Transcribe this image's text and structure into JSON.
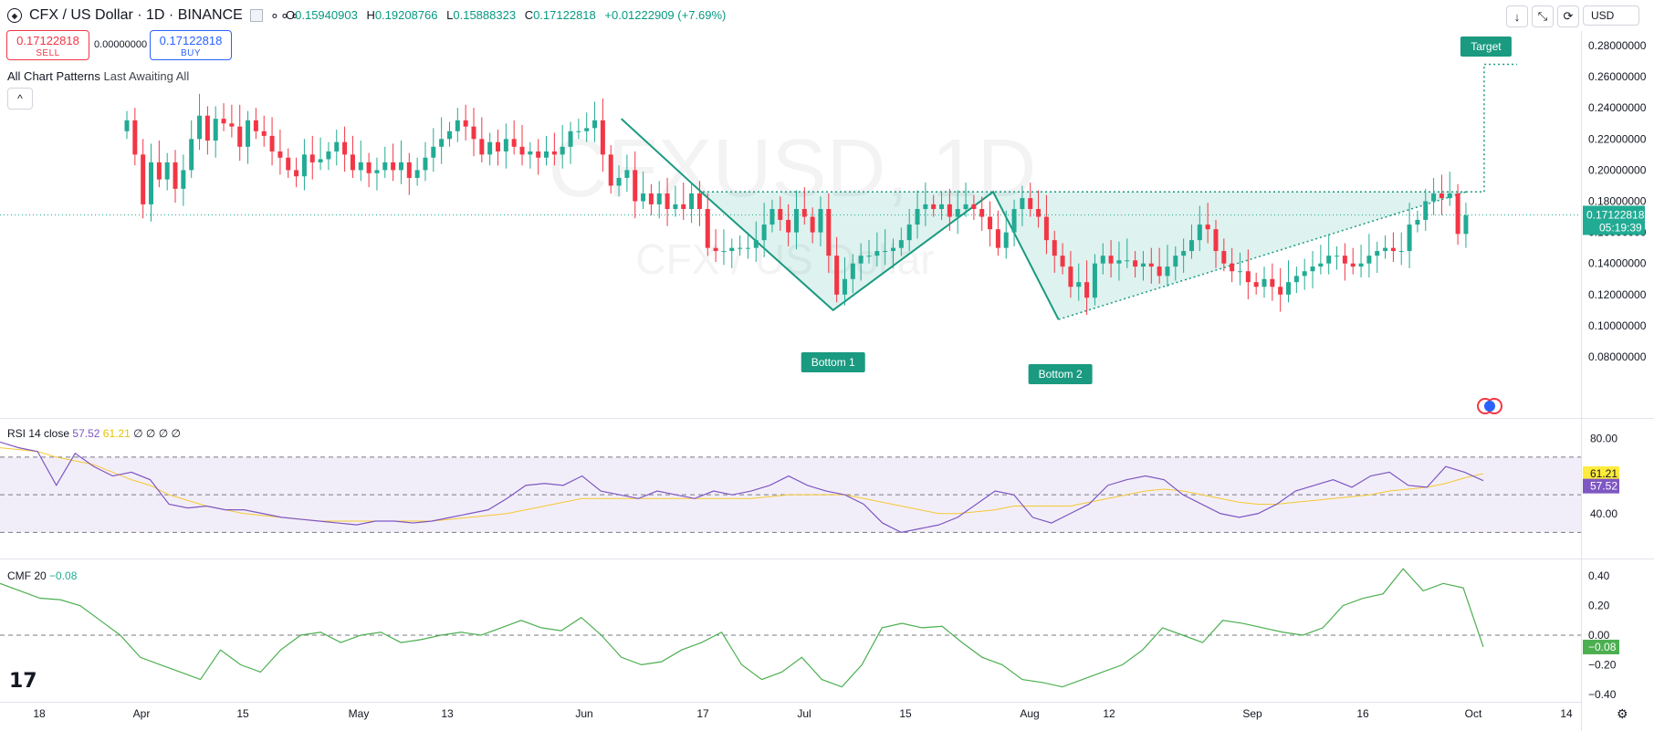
{
  "header": {
    "symbol_title": "CFX / US Dollar · 1D · BINANCE",
    "ohlc": {
      "open_label": "O",
      "open": "0.15940903",
      "high_label": "H",
      "high": "0.19208766",
      "low_label": "L",
      "low": "0.15888323",
      "close_label": "C",
      "close": "0.17122818",
      "change": "+0.01222909 (+7.69%)"
    },
    "currency": "USD"
  },
  "trade": {
    "sell_price": "0.17122818",
    "sell_label": "SELL",
    "buy_price": "0.17122818",
    "buy_label": "BUY",
    "spread": "0.00000000"
  },
  "indicator_bar": {
    "name": "All Chart Patterns",
    "params": "Last Awaiting All"
  },
  "watermark": {
    "symbol": "CFXUSD, 1D",
    "name": "CFX / US Dollar"
  },
  "annotations": {
    "bottom1": "Bottom 1",
    "bottom2": "Bottom 2",
    "target": "Target"
  },
  "price_tag": {
    "price": "0.17122818",
    "countdown": "05:19:39"
  },
  "rsi": {
    "legend_name": "RSI 14 close",
    "value": "57.52",
    "ma": "61.21",
    "empties": "∅ ∅ ∅ ∅",
    "ticks": [
      "80.00",
      "40.00"
    ]
  },
  "cmf": {
    "legend_name": "CMF 20",
    "value": "−0.08",
    "ticks": [
      "0.40",
      "0.20",
      "0.00",
      "−0.20",
      "−0.40"
    ]
  },
  "colors": {
    "up": "#22ab94",
    "down": "#f23645",
    "pattern": "#1a9a80",
    "rsi": "#7e57c2",
    "rsi_ma": "#f5c832",
    "cmf": "#4caf50"
  },
  "chart_data": {
    "type": "candlestick",
    "title": "CFX / US Dollar · 1D · BINANCE",
    "x_tick_labels": [
      "18",
      "Apr",
      "15",
      "May",
      "13",
      "Jun",
      "17",
      "Jul",
      "15",
      "Aug",
      "12",
      "Sep",
      "16",
      "Oct",
      "14"
    ],
    "y_tick_labels": [
      "0.28000000",
      "0.26000000",
      "0.24000000",
      "0.22000000",
      "0.20000000",
      "0.18000000",
      "0.16000000",
      "0.14000000",
      "0.12000000",
      "0.10000000",
      "0.08000000"
    ],
    "ylim": [
      0.07,
      0.29
    ],
    "last_close": 0.17122818,
    "candle_closes": [
      0.232,
      0.21,
      0.178,
      0.205,
      0.194,
      0.205,
      0.188,
      0.2,
      0.22,
      0.235,
      0.219,
      0.233,
      0.23,
      0.228,
      0.215,
      0.232,
      0.225,
      0.222,
      0.212,
      0.208,
      0.2,
      0.196,
      0.21,
      0.205,
      0.207,
      0.212,
      0.218,
      0.21,
      0.2,
      0.205,
      0.198,
      0.2,
      0.205,
      0.2,
      0.205,
      0.195,
      0.2,
      0.208,
      0.215,
      0.22,
      0.225,
      0.232,
      0.228,
      0.22,
      0.21,
      0.218,
      0.212,
      0.22,
      0.215,
      0.21,
      0.212,
      0.208,
      0.212,
      0.21,
      0.215,
      0.225,
      0.225,
      0.227,
      0.232,
      0.21,
      0.19,
      0.195,
      0.2,
      0.18,
      0.185,
      0.178,
      0.185,
      0.175,
      0.178,
      0.175,
      0.185,
      0.175,
      0.15,
      0.148,
      0.148,
      0.15,
      0.15,
      0.15,
      0.155,
      0.165,
      0.175,
      0.168,
      0.16,
      0.175,
      0.17,
      0.16,
      0.175,
      0.145,
      0.12,
      0.13,
      0.14,
      0.145,
      0.145,
      0.148,
      0.148,
      0.15,
      0.155,
      0.165,
      0.175,
      0.178,
      0.175,
      0.178,
      0.17,
      0.175,
      0.178,
      0.175,
      0.17,
      0.162,
      0.15,
      0.16,
      0.175,
      0.182,
      0.175,
      0.17,
      0.155,
      0.145,
      0.138,
      0.125,
      0.128,
      0.118,
      0.14,
      0.145,
      0.14,
      0.142,
      0.142,
      0.138,
      0.14,
      0.138,
      0.132,
      0.138,
      0.145,
      0.148,
      0.155,
      0.165,
      0.162,
      0.148,
      0.14,
      0.135,
      0.135,
      0.128,
      0.125,
      0.13,
      0.125,
      0.12,
      0.128,
      0.132,
      0.135,
      0.138,
      0.14,
      0.145,
      0.145,
      0.14,
      0.138,
      0.14,
      0.145,
      0.148,
      0.15,
      0.148,
      0.148,
      0.165,
      0.168,
      0.18,
      0.185,
      0.182,
      0.185,
      0.159,
      0.171
    ],
    "pattern": {
      "points": [
        {
          "label": "",
          "x": "Jun 6",
          "y": 0.233
        },
        {
          "label": "",
          "x": "Jun 17",
          "y": 0.185
        },
        {
          "label": "Bottom 1",
          "x": "Jul 5",
          "y": 0.11
        },
        {
          "label": "",
          "x": "Jul 27",
          "y": 0.186
        },
        {
          "label": "Bottom 2",
          "x": "Aug 5",
          "y": 0.104
        },
        {
          "label": "",
          "x": "Sep 30",
          "y": 0.186
        }
      ],
      "neckline": 0.186,
      "target": 0.268
    },
    "rsi": {
      "ylim": [
        20,
        85
      ],
      "bands": [
        70,
        50,
        30
      ],
      "values": [
        78,
        75,
        73,
        55,
        72,
        65,
        60,
        62,
        58,
        45,
        43,
        44,
        42,
        42,
        40,
        38,
        37,
        36,
        35,
        34,
        36,
        36,
        35,
        36,
        38,
        40,
        42,
        48,
        55,
        56,
        55,
        60,
        52,
        50,
        48,
        52,
        50,
        48,
        52,
        50,
        52,
        55,
        60,
        55,
        52,
        50,
        45,
        35,
        30,
        32,
        34,
        38,
        45,
        52,
        50,
        38,
        35,
        40,
        45,
        55,
        58,
        60,
        58,
        50,
        45,
        40,
        38,
        40,
        45,
        52,
        55,
        58,
        54,
        60,
        62,
        55,
        54,
        65,
        62,
        57.52
      ],
      "ma": [
        75,
        74,
        73,
        70,
        68,
        66,
        62,
        58,
        55,
        50,
        47,
        44,
        42,
        40,
        39,
        38,
        37,
        36,
        36,
        36,
        36,
        36,
        36,
        36,
        37,
        38,
        39,
        40,
        42,
        44,
        46,
        48,
        48,
        48,
        48,
        48,
        48,
        48,
        48,
        48,
        48,
        49,
        50,
        50,
        50,
        50,
        48,
        46,
        44,
        42,
        40,
        40,
        41,
        42,
        44,
        44,
        44,
        44,
        46,
        48,
        50,
        52,
        53,
        52,
        50,
        48,
        46,
        45,
        45,
        46,
        47,
        48,
        49,
        50,
        52,
        53,
        54,
        56,
        59,
        61.21
      ]
    },
    "cmf": {
      "ylim": [
        -0.42,
        0.42
      ],
      "values": [
        0.35,
        0.3,
        0.25,
        0.24,
        0.2,
        0.1,
        0.0,
        -0.15,
        -0.2,
        -0.25,
        -0.3,
        -0.1,
        -0.2,
        -0.25,
        -0.1,
        0.0,
        0.02,
        -0.05,
        0.0,
        0.02,
        -0.05,
        -0.03,
        0.0,
        0.02,
        0.0,
        0.05,
        0.1,
        0.05,
        0.03,
        0.12,
        0.0,
        -0.15,
        -0.2,
        -0.18,
        -0.1,
        -0.05,
        0.02,
        -0.2,
        -0.3,
        -0.25,
        -0.15,
        -0.3,
        -0.35,
        -0.2,
        0.05,
        0.08,
        0.05,
        0.06,
        -0.05,
        -0.15,
        -0.2,
        -0.3,
        -0.32,
        -0.35,
        -0.3,
        -0.25,
        -0.2,
        -0.1,
        0.05,
        0.0,
        -0.05,
        0.1,
        0.08,
        0.05,
        0.02,
        0.0,
        0.05,
        0.2,
        0.25,
        0.28,
        0.45,
        0.3,
        0.35,
        0.32,
        -0.08
      ]
    }
  }
}
